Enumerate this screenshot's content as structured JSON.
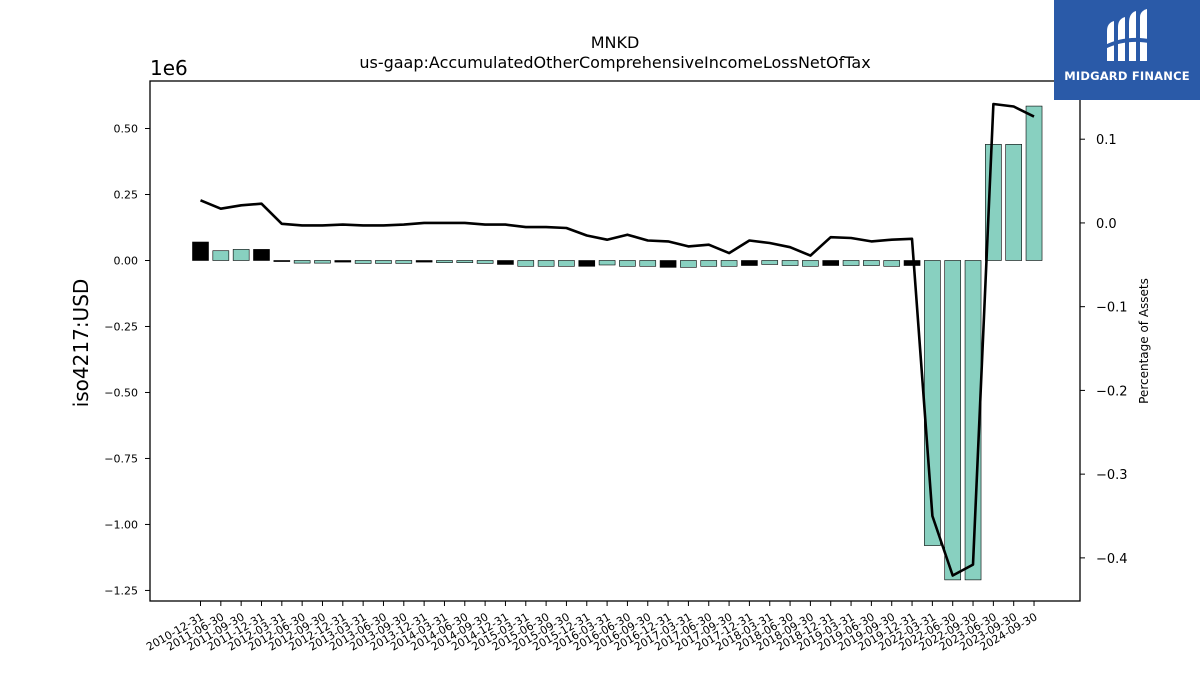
{
  "chart_data": {
    "type": "bar",
    "title": "MNKD",
    "subtitle": "us-gaap:AccumulatedOtherComprehensiveIncomeLossNetOfTax",
    "ylabel": "iso4217:USD",
    "y2label": "Percentage of Assets",
    "offset_label": "1e6",
    "ylim": [
      -1.29,
      0.68
    ],
    "y2lim": [
      -0.4515,
      0.1695
    ],
    "yticks": [
      "0.50",
      "0.25",
      "0.00",
      "−0.25",
      "−0.50",
      "−0.75",
      "−1.00",
      "−1.25"
    ],
    "ytick_values": [
      0.5,
      0.25,
      0.0,
      -0.25,
      -0.5,
      -0.75,
      -1.0,
      -1.25
    ],
    "y2ticks": [
      "0.1",
      "0.0",
      "−0.1",
      "−0.2",
      "−0.3",
      "−0.4"
    ],
    "y2tick_values": [
      0.1,
      0.0,
      -0.1,
      -0.2,
      -0.3,
      -0.4
    ],
    "grid": false,
    "colors": {
      "bar": "#88d0c0",
      "bar_alt": "#000000",
      "line": "#000000",
      "edge": "#000000"
    },
    "categories": [
      "2010-12-31",
      "2011-06-30",
      "2011-09-30",
      "2011-12-31",
      "2012-03-31",
      "2012-06-30",
      "2012-09-30",
      "2012-12-31",
      "2013-03-31",
      "2013-06-30",
      "2013-09-30",
      "2013-12-31",
      "2014-03-31",
      "2014-06-30",
      "2014-09-30",
      "2014-12-31",
      "2015-03-31",
      "2015-06-30",
      "2015-09-30",
      "2015-12-31",
      "2016-03-31",
      "2016-06-30",
      "2016-09-30",
      "2016-12-31",
      "2017-03-31",
      "2017-06-30",
      "2017-09-30",
      "2017-12-31",
      "2018-03-31",
      "2018-06-30",
      "2018-09-30",
      "2018-12-31",
      "2019-03-31",
      "2019-06-30",
      "2019-09-30",
      "2019-12-31",
      "2022-03-31",
      "2022-06-30",
      "2022-09-30",
      "2023-06-30",
      "2023-09-30",
      "2024-09-30"
    ],
    "series": [
      {
        "type": "bar",
        "values": [
          0.07,
          0.037,
          0.042,
          0.042,
          -0.004,
          -0.01,
          -0.01,
          -0.006,
          -0.011,
          -0.011,
          -0.011,
          -0.006,
          -0.008,
          -0.008,
          -0.011,
          -0.015,
          -0.022,
          -0.022,
          -0.022,
          -0.022,
          -0.017,
          -0.022,
          -0.022,
          -0.026,
          -0.026,
          -0.022,
          -0.022,
          -0.019,
          -0.015,
          -0.019,
          -0.022,
          -0.019,
          -0.019,
          -0.019,
          -0.022,
          -0.019,
          -1.08,
          -1.21,
          -1.21,
          0.44,
          0.44,
          0.585
        ],
        "highlight": [
          true,
          false,
          false,
          true,
          true,
          false,
          false,
          true,
          false,
          false,
          false,
          true,
          false,
          false,
          false,
          true,
          false,
          false,
          false,
          true,
          false,
          false,
          false,
          true,
          false,
          false,
          false,
          true,
          false,
          false,
          false,
          true,
          false,
          false,
          false,
          true,
          false,
          false,
          false,
          false,
          false,
          false
        ]
      },
      {
        "type": "line",
        "axis": "right",
        "values": [
          0.027,
          0.017,
          0.021,
          0.023,
          -0.001,
          -0.003,
          -0.003,
          -0.002,
          -0.003,
          -0.003,
          -0.002,
          0.0,
          0.0,
          0.0,
          -0.002,
          -0.002,
          -0.005,
          -0.005,
          -0.006,
          -0.015,
          -0.02,
          -0.014,
          -0.021,
          -0.022,
          -0.028,
          -0.026,
          -0.036,
          -0.021,
          -0.024,
          -0.029,
          -0.039,
          -0.017,
          -0.018,
          -0.022,
          -0.02,
          -0.019,
          -0.35,
          -0.421,
          -0.408,
          0.142,
          0.139,
          0.127
        ]
      }
    ]
  },
  "logo": {
    "text": "MIDGARD FINANCE",
    "icon": "midgard-logo-icon"
  }
}
